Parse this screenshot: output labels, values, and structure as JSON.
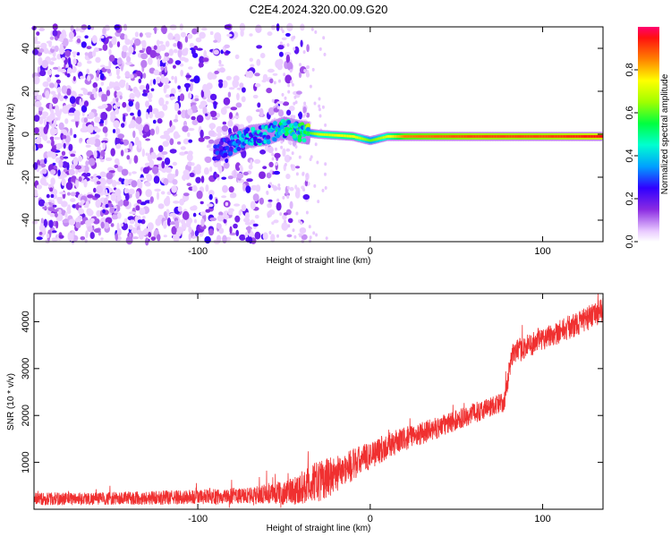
{
  "title": "C2E4.2024.320.00.09.G20",
  "chart_data": [
    {
      "type": "heatmap",
      "xlabel": "Height of straight line (km)",
      "ylabel": "Frequency (Hz)",
      "xlim": [
        -195,
        135
      ],
      "ylim": [
        -50,
        50
      ],
      "x_ticks": [
        -100,
        0,
        100
      ],
      "y_ticks": [
        -40,
        -20,
        0,
        20,
        40
      ],
      "colorbar": {
        "label": "Normalized spectral amplitude",
        "range": [
          0.0,
          1.0
        ],
        "ticks": [
          "0.0",
          "0.2",
          "0.4",
          "0.6",
          "0.8"
        ],
        "tick_values": [
          0.0,
          0.2,
          0.4,
          0.6,
          0.8
        ]
      },
      "carrier_line": {
        "points": [
          [
            -90,
            -8
          ],
          [
            -80,
            -5
          ],
          [
            -70,
            -1
          ],
          [
            -60,
            0
          ],
          [
            -50,
            3
          ],
          [
            -40,
            1
          ],
          [
            -30,
            0
          ],
          [
            -10,
            -1
          ],
          [
            0,
            -3
          ],
          [
            10,
            -1
          ],
          [
            50,
            -1
          ],
          [
            100,
            -1
          ],
          [
            135,
            -1
          ]
        ],
        "amplitude": [
          [
            -90,
            0.25
          ],
          [
            -70,
            0.4
          ],
          [
            -40,
            0.5
          ],
          [
            -30,
            0.7
          ],
          [
            -10,
            0.75
          ],
          [
            0,
            0.6
          ],
          [
            20,
            0.85
          ],
          [
            60,
            0.9
          ],
          [
            100,
            0.9
          ],
          [
            135,
            0.95
          ]
        ]
      },
      "noise_region": {
        "x_range": [
          -195,
          -35
        ],
        "amplitude_range": [
          0.0,
          0.25
        ]
      }
    },
    {
      "type": "line",
      "xlabel": "Height of straight line (km)",
      "ylabel": "SNR (10 * v/v)",
      "xlim": [
        -195,
        135
      ],
      "ylim": [
        0,
        4600
      ],
      "x_ticks": [
        -100,
        0,
        100
      ],
      "y_ticks": [
        1000,
        2000,
        3000,
        4000
      ],
      "color": "#f03030",
      "series": [
        {
          "x": [
            -195,
            -150,
            -100,
            -70,
            -50,
            -40,
            -30,
            -20,
            -10,
            0,
            10,
            20,
            40,
            60,
            78,
            82,
            100,
            120,
            135
          ],
          "y": [
            220,
            230,
            260,
            290,
            350,
            450,
            600,
            750,
            950,
            1150,
            1350,
            1500,
            1750,
            2050,
            2300,
            3300,
            3650,
            3950,
            4250
          ],
          "noise_amplitude": [
            140,
            140,
            160,
            180,
            250,
            350,
            450,
            400,
            350,
            300,
            280,
            250,
            230,
            220,
            220,
            250,
            260,
            260,
            260
          ]
        }
      ]
    }
  ]
}
